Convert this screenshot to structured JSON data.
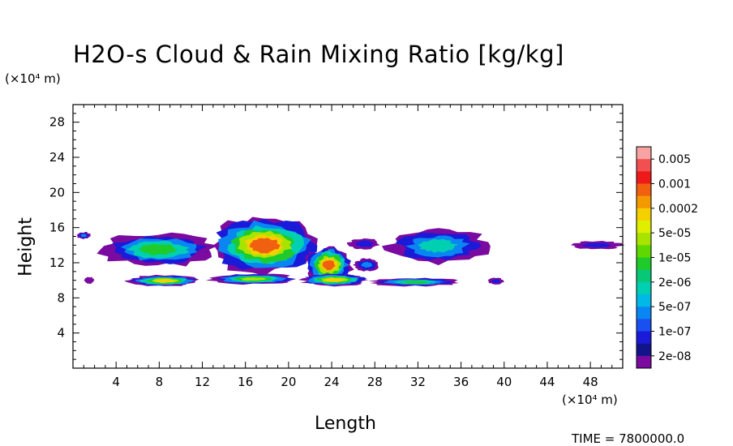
{
  "chart_data": {
    "type": "heatmap",
    "title": "H2O-s Cloud & Rain Mixing Ratio [kg/kg]",
    "xlabel": "Length",
    "ylabel": "Height",
    "x_unit": "(×10⁴ m)",
    "y_unit": "(×10⁴ m)",
    "xlim": [
      0,
      51
    ],
    "ylim": [
      0,
      30
    ],
    "x_ticks": [
      4,
      8,
      12,
      16,
      20,
      24,
      28,
      32,
      36,
      40,
      44,
      48
    ],
    "y_ticks": [
      4,
      8,
      12,
      16,
      20,
      24,
      28
    ],
    "colorbar": {
      "labels": [
        "0.005",
        "0.001",
        "0.0002",
        "5e-05",
        "1e-05",
        "2e-06",
        "5e-07",
        "1e-07",
        "2e-08"
      ],
      "colors": [
        "#f7a3a3",
        "#f25050",
        "#ee1a1a",
        "#f06010",
        "#f39a00",
        "#f5d000",
        "#e0ef00",
        "#a8e400",
        "#5ed800",
        "#1ecb2a",
        "#08c878",
        "#00cfb2",
        "#00b9e6",
        "#0a86f2",
        "#1a50f0",
        "#1a1ad8",
        "#14148a",
        "#7a0aa0"
      ],
      "grid": false
    },
    "cloud_regions": [
      {
        "x": [
          0.3,
          1.7
        ],
        "y": [
          14.7,
          15.5
        ],
        "max_level": "5e-07"
      },
      {
        "x": [
          2.3,
          13.5
        ],
        "y": [
          11.5,
          15.5
        ],
        "max_level": "1e-05"
      },
      {
        "x": [
          12.5,
          23.0
        ],
        "y": [
          10.5,
          17.5
        ],
        "max_level": "0.001"
      },
      {
        "x": [
          21.5,
          26.0
        ],
        "y": [
          9.5,
          14.0
        ],
        "max_level": "0.001"
      },
      {
        "x": [
          26.0,
          28.5
        ],
        "y": [
          11.0,
          12.5
        ],
        "max_level": "5e-07"
      },
      {
        "x": [
          29.0,
          38.8
        ],
        "y": [
          11.8,
          16.0
        ],
        "max_level": "2e-06"
      },
      {
        "x": [
          25.5,
          28.5
        ],
        "y": [
          13.5,
          14.8
        ],
        "max_level": "1e-07"
      },
      {
        "x": [
          46.2,
          51.0
        ],
        "y": [
          13.5,
          14.5
        ],
        "max_level": "1e-07"
      },
      {
        "x": [
          5.0,
          12.0
        ],
        "y": [
          9.3,
          10.6
        ],
        "max_level": "0.0002"
      },
      {
        "x": [
          12.5,
          21.0
        ],
        "y": [
          9.5,
          10.8
        ],
        "max_level": "5e-05"
      },
      {
        "x": [
          21.0,
          27.5
        ],
        "y": [
          9.3,
          10.8
        ],
        "max_level": "0.0002"
      },
      {
        "x": [
          27.5,
          36.0
        ],
        "y": [
          9.3,
          10.3
        ],
        "max_level": "1e-05"
      },
      {
        "x": [
          38.5,
          40.0
        ],
        "y": [
          9.5,
          10.3
        ],
        "max_level": "1e-07"
      },
      {
        "x": [
          1.0,
          2.0
        ],
        "y": [
          9.6,
          10.4
        ],
        "max_level": "2e-08"
      }
    ]
  },
  "footer": {
    "time_text": "TIME = 7800000.0"
  }
}
